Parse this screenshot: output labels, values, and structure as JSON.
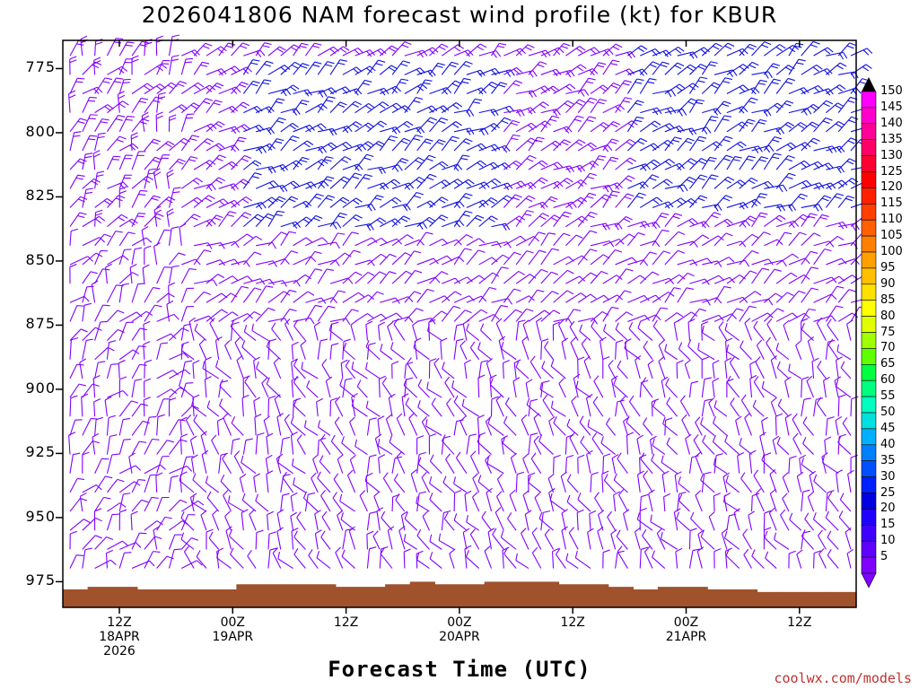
{
  "title": "2026041806 NAM forecast wind profile (kt) for KBUR",
  "credit": "coolwx.com/models",
  "colorbar": {
    "labels": [
      "150",
      "145",
      "140",
      "135",
      "130",
      "125",
      "120",
      "115",
      "110",
      "105",
      "100",
      "95",
      "90",
      "85",
      "80",
      "75",
      "70",
      "65",
      "60",
      "55",
      "50",
      "45",
      "40",
      "35",
      "30",
      "25",
      "20",
      "15",
      "10",
      "5"
    ],
    "colors": [
      "#ff00ff",
      "#ff00cc",
      "#ff0099",
      "#ff0066",
      "#ff0033",
      "#ff0000",
      "#ff2000",
      "#ff4000",
      "#ff6000",
      "#ff8000",
      "#ffa000",
      "#ffc000",
      "#ffe000",
      "#ffff00",
      "#e0ff00",
      "#a0ff00",
      "#60ff00",
      "#00ff40",
      "#00ff80",
      "#00ffc0",
      "#00e0e0",
      "#00b0ff",
      "#0080ff",
      "#0050ff",
      "#0020ff",
      "#0000e0",
      "#2000ff",
      "#4000ff",
      "#6000ff",
      "#8000ff"
    ]
  },
  "chart_data": {
    "type": "other",
    "title": "2026041806 NAM forecast wind profile (kt) for KBUR",
    "xlabel": "Forecast Time (UTC)",
    "ylabel": "",
    "y_ticks": [
      "775",
      "800",
      "825",
      "850",
      "875",
      "900",
      "925",
      "950",
      "975"
    ],
    "x_ticks": [
      {
        "label": "12Z",
        "sub": "18APR",
        "sub2": "2026"
      },
      {
        "label": "00Z",
        "sub": "19APR",
        "sub2": ""
      },
      {
        "label": "12Z",
        "sub": "",
        "sub2": ""
      },
      {
        "label": "00Z",
        "sub": "20APR",
        "sub2": ""
      },
      {
        "label": "12Z",
        "sub": "",
        "sub2": ""
      },
      {
        "label": "00Z",
        "sub": "21APR",
        "sub2": ""
      },
      {
        "label": "12Z",
        "sub": "",
        "sub2": ""
      }
    ],
    "y_range": [
      764,
      985
    ],
    "colorbar_units": "kt",
    "barb_color_low": "#8000ff",
    "barb_color_high": "#1010e0",
    "terrain_color": "#a0522d",
    "terrain_top_hpa": [
      978,
      977,
      977,
      978,
      978,
      978,
      978,
      976,
      976,
      976,
      976,
      977,
      977,
      976,
      975,
      976,
      976,
      975,
      975,
      975,
      976,
      976,
      977,
      978,
      977,
      977,
      978,
      978,
      979,
      979,
      979,
      979
    ]
  }
}
